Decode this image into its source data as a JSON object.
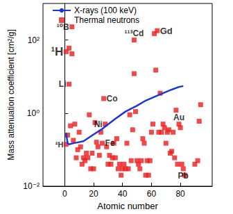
{
  "chart_data": {
    "type": "scatter",
    "xlabel": "Atomic number",
    "ylabel": "Mass attenuation coefficient [cm²/g]",
    "log": "y",
    "grid": false,
    "legend": "upper left",
    "xlim": [
      -15,
      102
    ],
    "xticks": [
      0,
      20,
      40,
      60,
      80
    ],
    "ylim": [
      0.01,
      1000
    ],
    "yticks": [
      {
        "value": 0.01,
        "label": "10⁻²"
      },
      {
        "value": 1,
        "label": "10⁰"
      },
      {
        "value": 100,
        "label": "10²"
      }
    ],
    "series": [
      {
        "name": "X-rays (100 keV)",
        "type": "line",
        "color": "#1a35e0",
        "line_style": "solid",
        "x": [
          1,
          2,
          3,
          6,
          8,
          13,
          20,
          26,
          29,
          35,
          42,
          50,
          56,
          64,
          74,
          79,
          82
        ],
        "values": [
          0.29,
          0.15,
          0.14,
          0.15,
          0.155,
          0.17,
          0.26,
          0.37,
          0.46,
          0.7,
          1.1,
          1.6,
          2.2,
          3.0,
          4.4,
          5.2,
          5.5
        ]
      },
      {
        "name": "Thermal neutrons",
        "type": "scatter",
        "color": "#ee1c1c",
        "marker": "square",
        "x": [
          1,
          1,
          2,
          3,
          3,
          4,
          5,
          5,
          6,
          7,
          8,
          9,
          10,
          11,
          12,
          13,
          14,
          15,
          16,
          17,
          18,
          19,
          20,
          21,
          22,
          23,
          24,
          25,
          26,
          27,
          28,
          29,
          30,
          31,
          32,
          33,
          34,
          35,
          36,
          37,
          38,
          39,
          40,
          41,
          42,
          43,
          44,
          45,
          46,
          47,
          48,
          48,
          49,
          50,
          51,
          52,
          53,
          54,
          55,
          56,
          57,
          58,
          59,
          60,
          61,
          62,
          63,
          64,
          65,
          66,
          67,
          68,
          69,
          70,
          71,
          72,
          73,
          74,
          75,
          76,
          77,
          78,
          79,
          80,
          81,
          82,
          83,
          90,
          92,
          93,
          94
        ],
        "values": [
          48,
          0.14,
          0.25,
          6.2,
          60,
          0.45,
          230,
          42,
          0.18,
          0.5,
          0.06,
          0.1,
          0.3,
          0.12,
          0.04,
          0.06,
          0.05,
          0.08,
          0.06,
          0.9,
          0.03,
          0.08,
          0.03,
          0.55,
          0.16,
          0.12,
          0.07,
          0.3,
          0.15,
          2.5,
          0.5,
          0.12,
          0.04,
          0.07,
          0.04,
          0.06,
          0.15,
          0.06,
          0.2,
          0.03,
          0.04,
          0.02,
          0.03,
          0.04,
          0.03,
          0.15,
          0.03,
          0.9,
          0.05,
          0.35,
          100,
          12,
          1.1,
          0.05,
          0.04,
          0.03,
          0.05,
          0.2,
          0.15,
          0.02,
          0.05,
          0.02,
          0.05,
          0.3,
          0.5,
          150,
          15,
          180,
          0.3,
          3.5,
          0.3,
          0.5,
          0.4,
          0.15,
          0.3,
          0.35,
          0.08,
          0.09,
          0.3,
          0.06,
          1.2,
          0.04,
          0.5,
          0.4,
          0.04,
          0.03,
          0.02,
          0.04,
          0.05,
          0.6,
          1.7
        ]
      }
    ],
    "annotations": [
      {
        "text": "¹⁰B",
        "x": 5,
        "y": 230
      },
      {
        "text": "¹H",
        "x": 1,
        "y": 48
      },
      {
        "text": "Li",
        "x": 3,
        "y": 6.2
      },
      {
        "text": "²H",
        "x": 1,
        "y": 0.14
      },
      {
        "text": "¹¹³Cd",
        "x": 48,
        "y": 100
      },
      {
        "text": "Gd",
        "x": 64,
        "y": 180
      },
      {
        "text": "Co",
        "x": 27,
        "y": 2.5
      },
      {
        "text": "Ni",
        "x": 28,
        "y": 0.5
      },
      {
        "text": "Fe",
        "x": 26,
        "y": 0.15
      },
      {
        "text": "Au",
        "x": 79,
        "y": 0.5
      },
      {
        "text": "Pb",
        "x": 82,
        "y": 0.03
      }
    ]
  }
}
